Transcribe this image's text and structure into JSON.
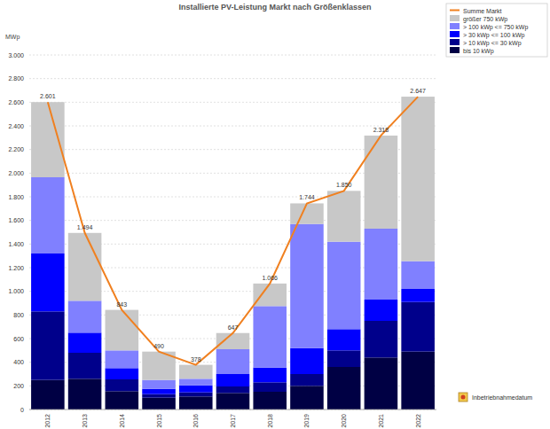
{
  "chart_data": {
    "type": "bar",
    "title": "Installierte PV-Leistung Markt nach Größenklassen",
    "y_label": "MWp",
    "x_label": "Inbetriebnahmedatum",
    "stacked": true,
    "grid": true,
    "legend": "right",
    "categories": [
      "2012",
      "2013",
      "2014",
      "2015",
      "2016",
      "2017",
      "2018",
      "2019",
      "2020",
      "2021",
      "2022"
    ],
    "ylim": [
      0,
      3000
    ],
    "yticks": [
      0,
      200,
      400,
      600,
      800,
      {
        "value": 1000,
        "label": "1.000"
      },
      {
        "value": 1200,
        "label": "1.200"
      },
      {
        "value": 1400,
        "label": "1.400"
      },
      {
        "value": 1600,
        "label": "1.600"
      },
      {
        "value": 1800,
        "label": "1.800"
      },
      {
        "value": 2000,
        "label": "2.000"
      },
      {
        "value": 2200,
        "label": "2.200"
      },
      {
        "value": 2400,
        "label": "2.400"
      },
      {
        "value": 2600,
        "label": "2.600"
      },
      {
        "value": 2800,
        "label": "2.800"
      },
      {
        "value": 3000,
        "label": "3.000"
      }
    ],
    "series": [
      {
        "name": "bis 10 kWp",
        "color": "#000044",
        "values": [
          250,
          260,
          155,
          100,
          110,
          140,
          150,
          200,
          360,
          440,
          490
        ]
      },
      {
        "name": "> 10 kWp <= 30 kWp",
        "color": "#00008b",
        "values": [
          580,
          220,
          100,
          30,
          35,
          55,
          80,
          100,
          140,
          310,
          420
        ]
      },
      {
        "name": "> 30 kWp <= 100 kWp",
        "color": "#0000ff",
        "values": [
          490,
          170,
          95,
          45,
          60,
          105,
          125,
          220,
          180,
          180,
          110
        ]
      },
      {
        "name": "> 100 kWp <= 750 kWp",
        "color": "#8080ff",
        "values": [
          645,
          270,
          150,
          75,
          55,
          210,
          520,
          1050,
          740,
          600,
          235
        ]
      },
      {
        "name": "größer 750 kWp",
        "color": "#c8c8c8",
        "values": [
          636,
          574,
          343,
          240,
          118,
          137,
          191,
          174,
          430,
          788,
          1392
        ]
      },
      {
        "name": "Summe Markt",
        "type": "line",
        "color": "#f08020",
        "data_labels": true,
        "values": [
          2601,
          1494,
          843,
          490,
          378,
          647,
          1066,
          1744,
          1850,
          2318,
          2647
        ],
        "value_labels": [
          "2.601",
          "1.494",
          "843",
          "490",
          "378",
          "647",
          "1.066",
          "1.744",
          "1.850",
          "2.318",
          "2.647"
        ]
      }
    ]
  }
}
